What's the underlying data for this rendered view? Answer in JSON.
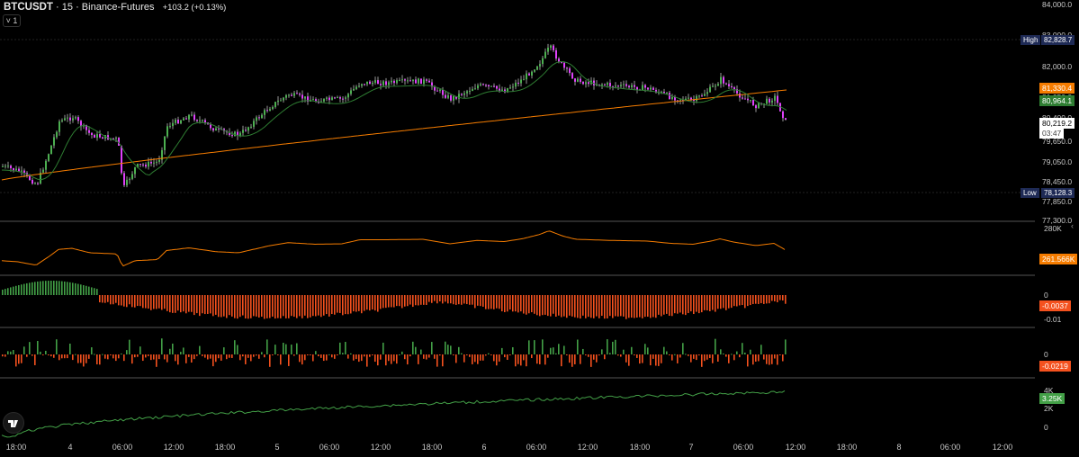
{
  "header": {
    "symbol": "BTCUSDT",
    "interval": "15",
    "exchange": "Binance-Futures",
    "change": "+103.2 (+0.13%)",
    "indicator_toggle": "1"
  },
  "price_scale": {
    "ticks": [
      "84,000.0",
      "83,000.0",
      "82,000.0",
      "81,050.0",
      "80,400.0",
      "79,650.0",
      "79,050.0",
      "78,450.0",
      "77,850.0",
      "77,300.0"
    ],
    "high_label": "High",
    "high_value": "82,828.7",
    "low_label": "Low",
    "low_value": "78,128.3",
    "ma_orange_value": "81,330.4",
    "ma_green_value": "80,964.1",
    "last_price": "80,219.2",
    "countdown": "03:47",
    "colors": {
      "up": "#4caf50",
      "down": "#e040fb",
      "wick": "#ffffff",
      "ma_orange": "#f57c00",
      "ma_green": "#2e7d32"
    }
  },
  "pane2": {
    "tick_top": "280K",
    "value": "261.566K",
    "color": "#f57c00"
  },
  "pane3": {
    "tick_zero": "0",
    "tick_bottom": "-0.01",
    "value": "-0.0037",
    "color": "#f4511e"
  },
  "pane4": {
    "tick_zero": "0",
    "value": "-0.0219",
    "color": "#f4511e"
  },
  "pane5": {
    "tick_top": "4K",
    "tick_mid": "2K",
    "tick_bottom": "0",
    "value": "3.25K",
    "color": "#43a047"
  },
  "time_axis": [
    "18:00",
    "4",
    "06:00",
    "12:00",
    "18:00",
    "5",
    "06:00",
    "12:00",
    "18:00",
    "6",
    "06:00",
    "12:00",
    "18:00",
    "7",
    "06:00",
    "12:00",
    "18:00",
    "8",
    "06:00",
    "12:00"
  ],
  "icons": [
    "tradingview-logo-icon",
    "chevron-down-icon",
    "collapse-arrow-icon"
  ]
}
